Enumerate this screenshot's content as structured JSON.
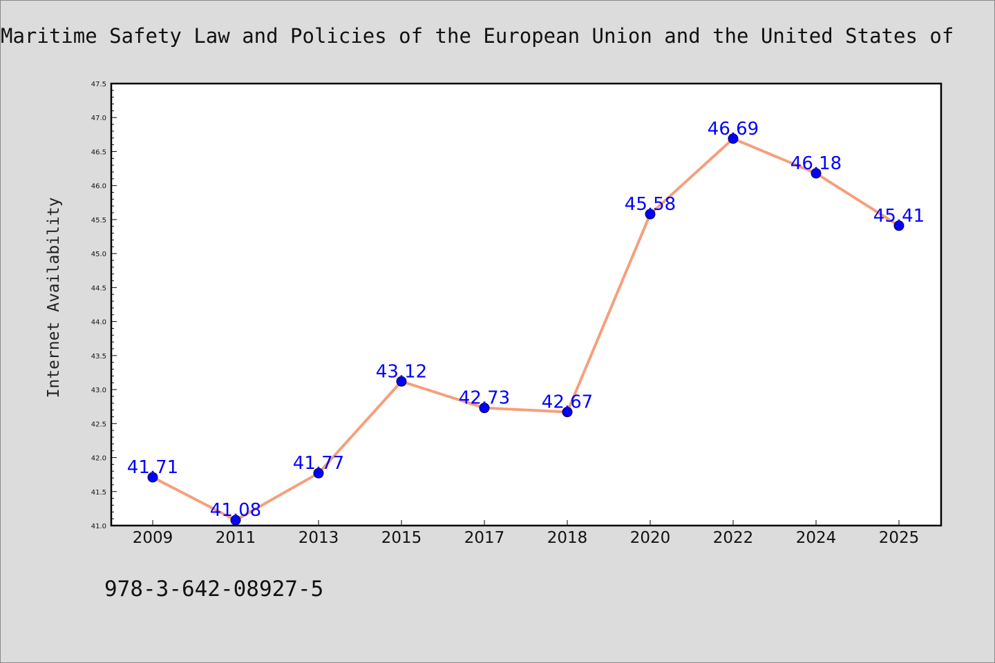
{
  "chart_data": {
    "type": "line",
    "title": "Maritime Safety Law and Policies of the European Union and the United States of",
    "xlabel": "",
    "ylabel": "Internet Availability",
    "categories": [
      "2009",
      "2011",
      "2013",
      "2015",
      "2017",
      "2018",
      "2020",
      "2022",
      "2024",
      "2025"
    ],
    "series": [
      {
        "values": [
          41.71,
          41.08,
          41.77,
          43.12,
          42.73,
          42.67,
          45.58,
          46.69,
          46.18,
          45.41
        ],
        "labels": [
          "41.71",
          "41.08",
          "41.77",
          "43.12",
          "42.73",
          "42.67",
          "45.58",
          "46.69",
          "46.18",
          "45.41"
        ],
        "line_color": "#f4a07c",
        "marker_color": "#0000ff"
      }
    ],
    "ylim": [
      41.0,
      47.5
    ],
    "yticks": [
      "41.0",
      "41.5",
      "42.0",
      "42.5",
      "43.0",
      "43.5",
      "44.0",
      "44.5",
      "45.0",
      "45.5",
      "46.0",
      "46.5",
      "47.0",
      "47.5"
    ],
    "grid": false,
    "legend": "none"
  },
  "footer": {
    "isbn": "978-3-642-08927-5"
  }
}
